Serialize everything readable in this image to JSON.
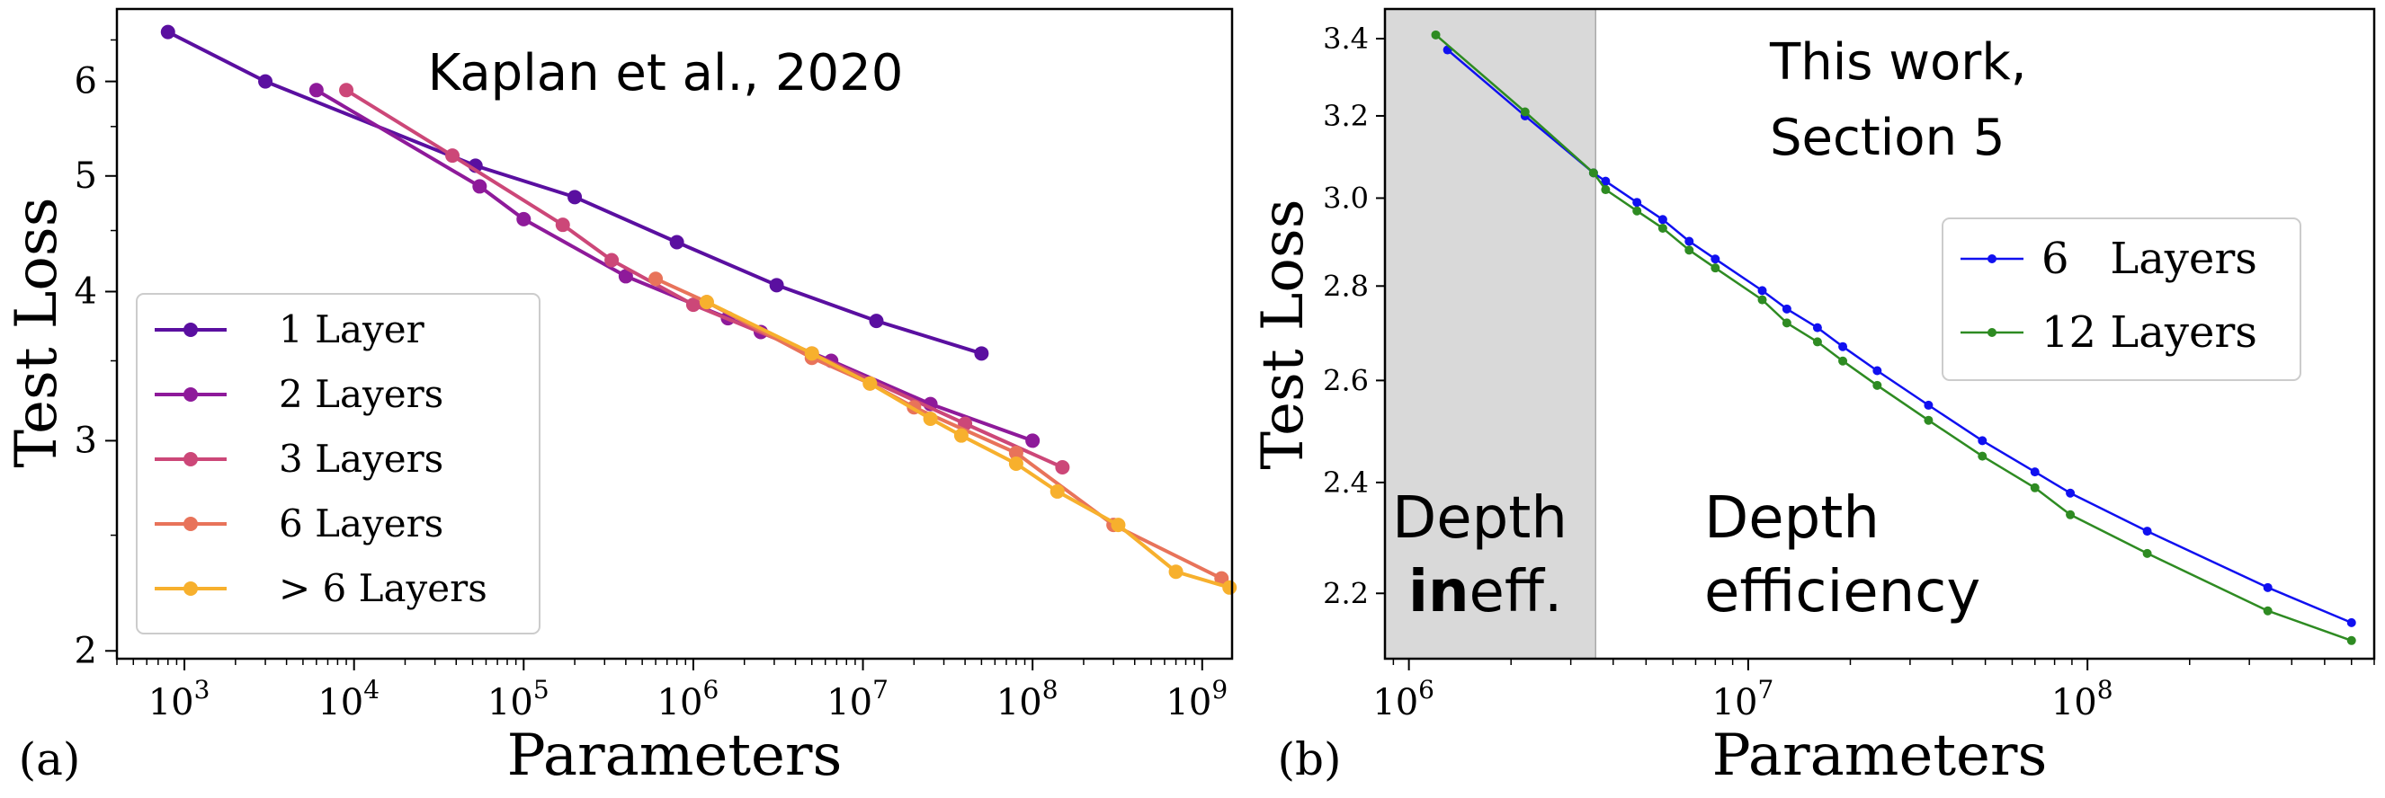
{
  "chart_data": [
    {
      "type": "line",
      "panel_label": "(a)",
      "annotation": "Kaplan et al., 2020",
      "xlabel": "Parameters",
      "ylabel": "Test Loss",
      "xscale": "log",
      "yscale": "log",
      "xlim": [
        400,
        1500000000
      ],
      "ylim": [
        1.97,
        6.9
      ],
      "xticks": [
        {
          "value": 1000,
          "base": "10",
          "exp": "3"
        },
        {
          "value": 10000,
          "base": "10",
          "exp": "4"
        },
        {
          "value": 100000,
          "base": "10",
          "exp": "5"
        },
        {
          "value": 1000000,
          "base": "10",
          "exp": "6"
        },
        {
          "value": 10000000,
          "base": "10",
          "exp": "7"
        },
        {
          "value": 100000000,
          "base": "10",
          "exp": "8"
        },
        {
          "value": 1000000000,
          "base": "10",
          "exp": "9"
        }
      ],
      "yticks": [
        {
          "value": 2,
          "label": "2"
        },
        {
          "value": 3,
          "label": "3"
        },
        {
          "value": 4,
          "label": "4"
        },
        {
          "value": 5,
          "label": "5"
        },
        {
          "value": 6,
          "label": "6"
        }
      ],
      "legend_position": "lower-left",
      "series": [
        {
          "name": "1 Layer",
          "color": "#5a0fa0",
          "x": [
            800,
            3000,
            52000,
            200000,
            800000,
            3100000,
            12000000,
            50000000
          ],
          "y": [
            6.6,
            6.0,
            5.1,
            4.8,
            4.4,
            4.05,
            3.78,
            3.55
          ]
        },
        {
          "name": "2 Layers",
          "color": "#8e1a9a",
          "x": [
            6000,
            55000,
            100000,
            400000,
            1600000,
            2500000,
            6500000,
            25000000,
            100000000
          ],
          "y": [
            5.9,
            4.9,
            4.6,
            4.12,
            3.8,
            3.7,
            3.5,
            3.22,
            3.0
          ]
        },
        {
          "name": "3 Layers",
          "color": "#cc4778",
          "x": [
            9000,
            38000,
            170000,
            330000,
            1000000,
            5000000,
            40000000,
            150000000
          ],
          "y": [
            5.9,
            5.2,
            4.55,
            4.25,
            3.9,
            3.55,
            3.1,
            2.85
          ]
        },
        {
          "name": "6 Layers",
          "color": "#e8735a",
          "x": [
            600000,
            1200000,
            5000000,
            11000000,
            20000000,
            80000000,
            300000000,
            1300000000
          ],
          "y": [
            4.1,
            3.92,
            3.52,
            3.35,
            3.2,
            2.93,
            2.55,
            2.3
          ]
        },
        {
          "name": "> 6 Layers",
          "color": "#f7b02d",
          "x": [
            1200000,
            5000000,
            11000000,
            25000000,
            38000000,
            80000000,
            140000000,
            320000000,
            700000000,
            1450000000
          ],
          "y": [
            3.92,
            3.55,
            3.35,
            3.13,
            3.03,
            2.87,
            2.72,
            2.55,
            2.33,
            2.26
          ]
        }
      ]
    },
    {
      "type": "line",
      "panel_label": "(b)",
      "annotation_lines": [
        "This work,",
        "Section 5"
      ],
      "shaded_region_labels": [
        "Depth",
        "ineff."
      ],
      "region_label_prefix_bold": "in",
      "region_label_suffix": "eff.",
      "efficiency_labels": [
        "Depth",
        "efficiency"
      ],
      "shaded_region_x": [
        850000,
        3550000
      ],
      "xlabel": "Parameters",
      "ylabel": "Test Loss",
      "xscale": "log",
      "yscale": "log",
      "xlim": [
        850000,
        700000000
      ],
      "ylim": [
        2.09,
        3.48
      ],
      "xticks": [
        {
          "value": 1000000,
          "base": "10",
          "exp": "6"
        },
        {
          "value": 10000000,
          "base": "10",
          "exp": "7"
        },
        {
          "value": 100000000,
          "base": "10",
          "exp": "8"
        }
      ],
      "yticks": [
        {
          "value": 2.2,
          "label": "2.2"
        },
        {
          "value": 2.4,
          "label": "2.4"
        },
        {
          "value": 2.6,
          "label": "2.6"
        },
        {
          "value": 2.8,
          "label": "2.8"
        },
        {
          "value": 3.0,
          "label": "3.0"
        },
        {
          "value": 3.2,
          "label": "3.2"
        },
        {
          "value": 3.4,
          "label": "3.4"
        }
      ],
      "legend_position": "upper-right",
      "series": [
        {
          "name": "6   Layers",
          "color": "#1010f0",
          "x": [
            1300000,
            2200000,
            3500000,
            3800000,
            4700000,
            5600000,
            6700000,
            8000000,
            11000000,
            13000000,
            16000000,
            19000000,
            24000000,
            34000000,
            49000000,
            70000000,
            89000000,
            150000000,
            340000000,
            600000000
          ],
          "y": [
            3.37,
            3.2,
            3.06,
            3.04,
            2.99,
            2.95,
            2.9,
            2.86,
            2.79,
            2.75,
            2.71,
            2.67,
            2.62,
            2.55,
            2.48,
            2.42,
            2.38,
            2.31,
            2.21,
            2.15
          ]
        },
        {
          "name": "12 Layers",
          "color": "#2e8b22",
          "x": [
            1200000,
            2200000,
            3500000,
            3800000,
            4700000,
            5600000,
            6700000,
            8000000,
            11000000,
            13000000,
            16000000,
            19000000,
            24000000,
            34000000,
            49000000,
            70000000,
            89000000,
            150000000,
            340000000,
            600000000
          ],
          "y": [
            3.41,
            3.21,
            3.06,
            3.02,
            2.97,
            2.93,
            2.88,
            2.84,
            2.77,
            2.72,
            2.68,
            2.64,
            2.59,
            2.52,
            2.45,
            2.39,
            2.34,
            2.27,
            2.17,
            2.12
          ]
        }
      ]
    }
  ]
}
